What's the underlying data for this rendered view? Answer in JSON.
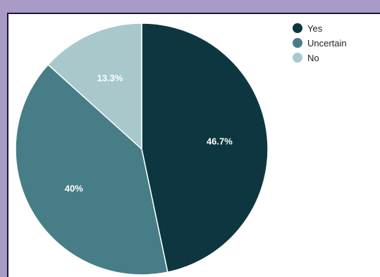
{
  "chart_data": {
    "type": "pie",
    "title": "",
    "categories": [
      "Yes",
      "Uncertain",
      "No"
    ],
    "values": [
      46.7,
      40,
      13.3
    ],
    "labels": [
      "46.7%",
      "40%",
      "13.3%"
    ],
    "colors": [
      "#0d3640",
      "#477d86",
      "#a8c8cc"
    ],
    "legend": {
      "position": "top-right",
      "entries": [
        "Yes",
        "Uncertain",
        "No"
      ]
    },
    "slice_border_color": "#ffffff"
  },
  "background_color": "#a99bc6",
  "panel_color": "#ffffff"
}
